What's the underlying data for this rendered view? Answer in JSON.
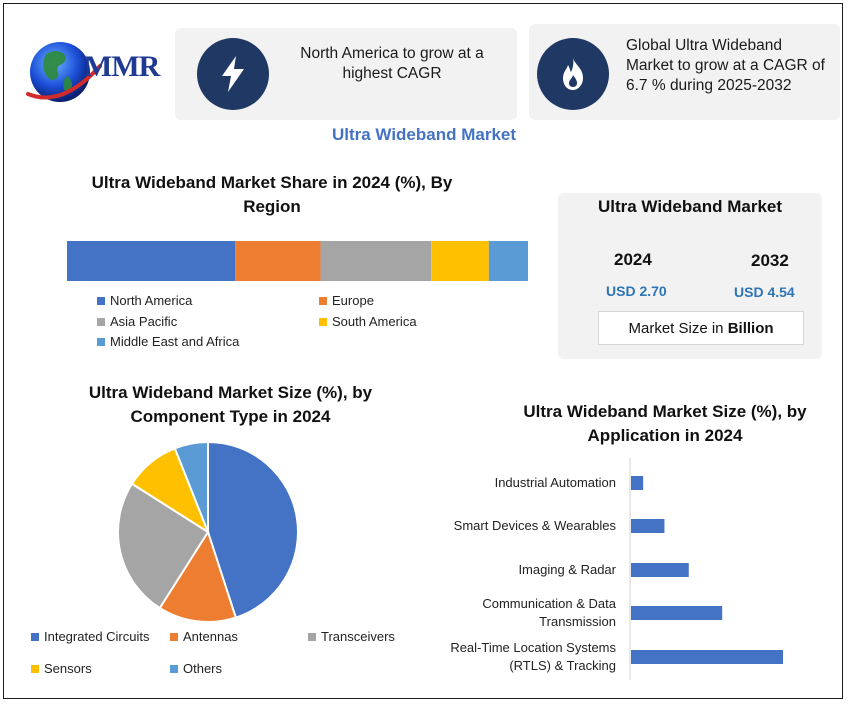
{
  "logo": {
    "text": "MMR"
  },
  "cards": [
    {
      "icon": "lightning-bolt-icon",
      "text": "North America to grow at a highest CAGR"
    },
    {
      "icon": "flame-icon",
      "text": "Global Ultra Wideband Market to grow at a CAGR of 6.7 % during 2025-2032"
    }
  ],
  "main_title": "Ultra Wideband Market",
  "market_box": {
    "title": "Ultra Wideband Market",
    "year1": "2024",
    "value1": "USD 2.70",
    "year2": "2032",
    "value2": "USD 4.54",
    "unit_prefix": "Market Size in ",
    "unit_bold": "Billion"
  },
  "colors": {
    "blue": "#4472c4",
    "orange": "#ed7d31",
    "gray": "#a5a5a5",
    "yellow": "#ffc000",
    "light_blue": "#5b9bd5",
    "navy_icon": "#1f3864",
    "title_blue": "#4472c4"
  },
  "chart_data": [
    {
      "type": "bar",
      "orientation": "stacked-horizontal",
      "title": "Ultra Wideband Market Share in 2024 (%), By Region",
      "series": [
        {
          "name": "North America",
          "value": 36.5,
          "color": "#4472c4"
        },
        {
          "name": "Europe",
          "value": 18.5,
          "color": "#ed7d31"
        },
        {
          "name": "Asia Pacific",
          "value": 24,
          "color": "#a5a5a5"
        },
        {
          "name": "South America",
          "value": 12.5,
          "color": "#ffc000"
        },
        {
          "name": "Middle East and Africa",
          "value": 8.5,
          "color": "#5b9bd5"
        }
      ],
      "legend_position": "bottom"
    },
    {
      "type": "pie",
      "title": "Ultra Wideband Market Size (%), by Component Type in 2024",
      "slices": [
        {
          "name": "Integrated Circuits",
          "value": 45,
          "color": "#4472c4"
        },
        {
          "name": "Antennas",
          "value": 14,
          "color": "#ed7d31"
        },
        {
          "name": "Transceivers",
          "value": 25,
          "color": "#a5a5a5"
        },
        {
          "name": "Sensors",
          "value": 10,
          "color": "#ffc000"
        },
        {
          "name": "Others",
          "value": 6,
          "color": "#5b9bd5"
        }
      ],
      "legend_position": "bottom"
    },
    {
      "type": "bar",
      "orientation": "horizontal",
      "title": "Ultra Wideband Market Size (%), by Application in 2024",
      "categories": [
        "Industrial Automation",
        "Smart Devices & Wearables",
        "Imaging & Radar",
        "Communication & Data Transmission",
        "Real-Time Location Systems (RTLS) & Tracking"
      ],
      "category_lines": [
        [
          "Industrial Automation"
        ],
        [
          "Smart Devices & Wearables"
        ],
        [
          "Imaging & Radar"
        ],
        [
          "Communication & Data",
          "Transmission"
        ],
        [
          "Real-Time Location Systems",
          "(RTLS) & Tracking"
        ]
      ],
      "values": [
        4,
        11,
        19,
        30,
        50
      ],
      "xlim": [
        0,
        50
      ],
      "color": "#4472c4",
      "grid": false
    }
  ]
}
